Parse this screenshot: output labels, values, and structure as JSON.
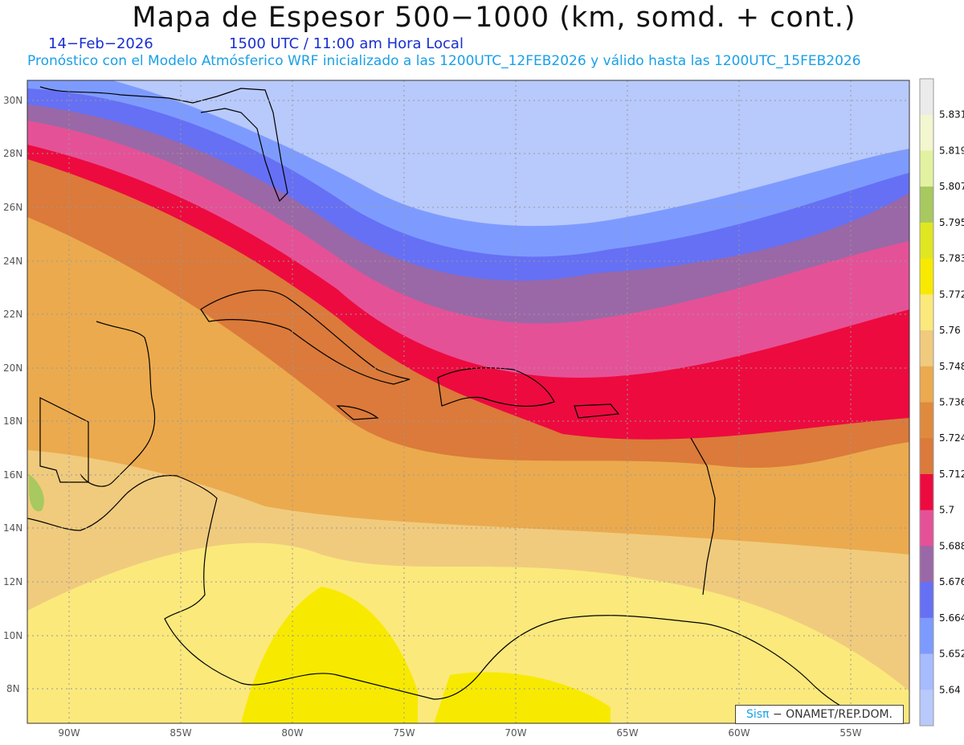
{
  "header": {
    "title": "Mapa de Espesor 500−1000 (km, somd. + cont.)",
    "date": "14−Feb−2026",
    "time": "1500 UTC / 11:00 am Hora Local",
    "model_line": "Pronóstico con el Modelo Atmósferico WRF inicializado a las 1200UTC_12FEB2026 y válido hasta las  1200UTC_15FEB2026"
  },
  "map": {
    "lat_labels": [
      "30N",
      "28N",
      "26N",
      "24N",
      "22N",
      "20N",
      "18N",
      "16N",
      "14N",
      "12N",
      "10N",
      "8N"
    ],
    "lon_labels": [
      "90W",
      "85W",
      "80W",
      "75W",
      "70W",
      "65W",
      "60W",
      "55W"
    ]
  },
  "colorbar": {
    "levels": [
      "5.831",
      "5.819",
      "5.807",
      "5.795",
      "5.783",
      "5.772",
      "5.76",
      "5.748",
      "5.736",
      "5.724",
      "5.712",
      "5.7",
      "5.688",
      "5.676",
      "5.664",
      "5.652",
      "5.64"
    ],
    "colors": [
      "#ebebeb",
      "#f3f6cf",
      "#e2f2a0",
      "#a8c860",
      "#e0e620",
      "#f7ea00",
      "#fbe97c",
      "#f0cb7d",
      "#ebaa4e",
      "#e08a3e",
      "#db7a3a",
      "#ed0a3f",
      "#e55197",
      "#9a68a6",
      "#6670f4",
      "#7d9bff",
      "#a6bcff",
      "#b8c9fb"
    ]
  },
  "credit": {
    "brand": "Sisπ",
    "text": "− ONAMET/REP.DOM."
  }
}
